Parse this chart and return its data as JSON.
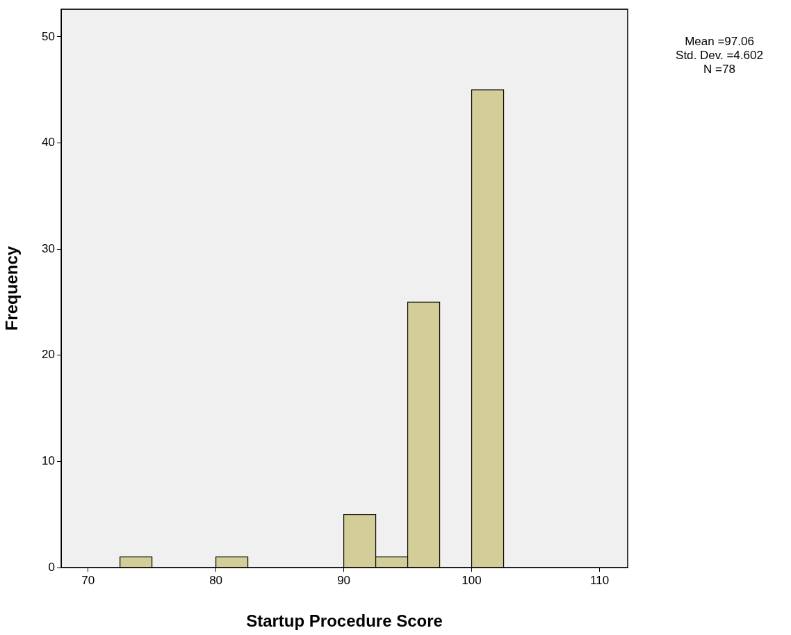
{
  "chart_data": {
    "type": "histogram",
    "xlabel": "Startup Procedure Score",
    "ylabel": "Frequency",
    "bins": [
      72.5,
      75,
      77.5,
      80,
      82.5,
      85,
      87.5,
      90,
      92.5,
      95,
      97.5,
      100,
      102.5
    ],
    "values": [
      1,
      0,
      0,
      1,
      0,
      0,
      0,
      5,
      1,
      25,
      0,
      45
    ],
    "color": "#d3ce97",
    "xlim": [
      67.9,
      112.2
    ],
    "xticks": [
      70,
      80,
      90,
      100,
      110
    ],
    "ylim": [
      0,
      52.6
    ],
    "yticks": [
      0,
      10,
      20,
      30,
      40,
      50
    ],
    "grid": false,
    "legend": false,
    "annotations": [
      "Mean =97.06",
      "Std. Dev. =4.602",
      "N =78"
    ]
  }
}
